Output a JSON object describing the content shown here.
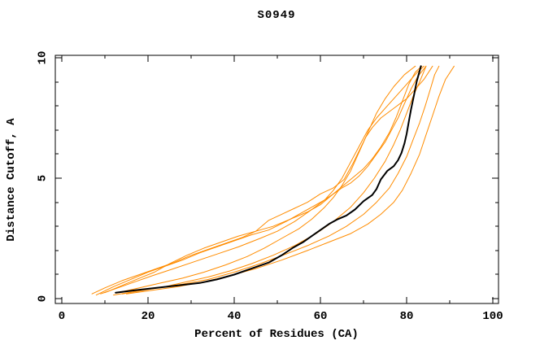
{
  "chart_data": {
    "type": "line",
    "title": "S0949",
    "xlabel": "Percent of Residues (CA)",
    "ylabel": "Distance Cutoff, A",
    "xlim": [
      -1.5,
      101.3
    ],
    "ylim": [
      -0.2,
      10.1
    ],
    "x_major_ticks": [
      0,
      20,
      40,
      60,
      80,
      100
    ],
    "x_minor_ticks": [
      10,
      30,
      50,
      70,
      90
    ],
    "y_major_ticks": [
      0,
      5,
      10
    ],
    "y_minor_ticks": [
      1,
      2,
      3,
      4,
      6,
      7,
      8,
      9
    ],
    "grid": false,
    "legend": "none",
    "colors": {
      "model_orange": "#ff8c00",
      "highlight_black": "#000000",
      "axis": "#000000"
    },
    "series": [
      {
        "name": "orange-1",
        "color": "#ff8c00",
        "width": 1,
        "points": [
          [
            7,
            0.2
          ],
          [
            10,
            0.45
          ],
          [
            14,
            0.75
          ],
          [
            18,
            1.0
          ],
          [
            22,
            1.25
          ],
          [
            26,
            1.5
          ],
          [
            30,
            1.8
          ],
          [
            34,
            2.05
          ],
          [
            38,
            2.3
          ],
          [
            42,
            2.55
          ],
          [
            45,
            2.8
          ],
          [
            48,
            3.25
          ],
          [
            51,
            3.5
          ],
          [
            54,
            3.75
          ],
          [
            57,
            4.0
          ],
          [
            60,
            4.35
          ],
          [
            63,
            4.6
          ],
          [
            65.5,
            4.95
          ],
          [
            67.5,
            5.6
          ],
          [
            69,
            6.15
          ],
          [
            70.5,
            6.7
          ],
          [
            72,
            7.1
          ],
          [
            74,
            7.5
          ],
          [
            77,
            7.9
          ],
          [
            80,
            8.3
          ],
          [
            82,
            8.7
          ],
          [
            84,
            9.1
          ],
          [
            86,
            9.65
          ]
        ]
      },
      {
        "name": "orange-2",
        "color": "#ff8c00",
        "width": 1,
        "points": [
          [
            8,
            0.15
          ],
          [
            12,
            0.5
          ],
          [
            16,
            0.8
          ],
          [
            20,
            1.1
          ],
          [
            24,
            1.35
          ],
          [
            28,
            1.6
          ],
          [
            32,
            1.9
          ],
          [
            36,
            2.15
          ],
          [
            40,
            2.4
          ],
          [
            44,
            2.65
          ],
          [
            48,
            2.85
          ],
          [
            52,
            3.2
          ],
          [
            55,
            3.5
          ],
          [
            58,
            3.8
          ],
          [
            61,
            4.1
          ],
          [
            63,
            4.35
          ],
          [
            65,
            4.6
          ],
          [
            67,
            4.8
          ],
          [
            69,
            5.1
          ],
          [
            71,
            5.5
          ],
          [
            73,
            6.0
          ],
          [
            75,
            6.5
          ],
          [
            76.5,
            7.0
          ],
          [
            78,
            7.5
          ],
          [
            79.5,
            8.1
          ],
          [
            81,
            8.7
          ],
          [
            82.5,
            9.2
          ],
          [
            84.5,
            9.65
          ]
        ]
      },
      {
        "name": "orange-3",
        "color": "#ff8c00",
        "width": 1,
        "points": [
          [
            10,
            0.25
          ],
          [
            14,
            0.55
          ],
          [
            18,
            0.85
          ],
          [
            21.5,
            1.1
          ],
          [
            25,
            1.45
          ],
          [
            29,
            1.8
          ],
          [
            33,
            2.1
          ],
          [
            37,
            2.35
          ],
          [
            41,
            2.6
          ],
          [
            45,
            2.8
          ],
          [
            49,
            3.0
          ],
          [
            53,
            3.3
          ],
          [
            57,
            3.6
          ],
          [
            60,
            3.9
          ],
          [
            62,
            4.2
          ],
          [
            64,
            4.5
          ],
          [
            66,
            4.8
          ],
          [
            68,
            5.1
          ],
          [
            70,
            5.4
          ],
          [
            72,
            5.8
          ],
          [
            74,
            6.3
          ],
          [
            76,
            6.9
          ],
          [
            77.5,
            7.5
          ],
          [
            79,
            8.2
          ],
          [
            80.5,
            8.9
          ],
          [
            82,
            9.4
          ],
          [
            83.5,
            9.65
          ]
        ]
      },
      {
        "name": "orange-4",
        "color": "#ff8c00",
        "width": 1,
        "points": [
          [
            9,
            0.2
          ],
          [
            13,
            0.45
          ],
          [
            17,
            0.7
          ],
          [
            21,
            0.95
          ],
          [
            26,
            1.25
          ],
          [
            31,
            1.55
          ],
          [
            36,
            1.85
          ],
          [
            41,
            2.15
          ],
          [
            46,
            2.5
          ],
          [
            50,
            2.8
          ],
          [
            54,
            3.2
          ],
          [
            58,
            3.7
          ],
          [
            61,
            4.1
          ],
          [
            63,
            4.5
          ],
          [
            65,
            5.0
          ],
          [
            66.5,
            5.5
          ],
          [
            68,
            6.0
          ],
          [
            69.5,
            6.5
          ],
          [
            71,
            7.0
          ],
          [
            73,
            7.5
          ],
          [
            75.5,
            8.0
          ],
          [
            78,
            8.5
          ],
          [
            80.5,
            9.0
          ],
          [
            82.5,
            9.4
          ],
          [
            84,
            9.65
          ]
        ]
      },
      {
        "name": "orange-5",
        "color": "#ff8c00",
        "width": 1,
        "points": [
          [
            13,
            0.25
          ],
          [
            18,
            0.45
          ],
          [
            23,
            0.65
          ],
          [
            28,
            0.85
          ],
          [
            33,
            1.1
          ],
          [
            38,
            1.4
          ],
          [
            43,
            1.75
          ],
          [
            47,
            2.1
          ],
          [
            51,
            2.5
          ],
          [
            55,
            2.9
          ],
          [
            58,
            3.3
          ],
          [
            61,
            3.8
          ],
          [
            63,
            4.2
          ],
          [
            65,
            4.7
          ],
          [
            67,
            5.3
          ],
          [
            68.5,
            5.9
          ],
          [
            70,
            6.5
          ],
          [
            71.5,
            7.1
          ],
          [
            73,
            7.7
          ],
          [
            75,
            8.3
          ],
          [
            77,
            8.8
          ],
          [
            79.5,
            9.3
          ],
          [
            82,
            9.65
          ]
        ]
      },
      {
        "name": "orange-6",
        "color": "#ff8c00",
        "width": 1,
        "points": [
          [
            14,
            0.2
          ],
          [
            19,
            0.35
          ],
          [
            24,
            0.5
          ],
          [
            29,
            0.7
          ],
          [
            34,
            0.9
          ],
          [
            39,
            1.15
          ],
          [
            44,
            1.45
          ],
          [
            49,
            1.8
          ],
          [
            54,
            2.2
          ],
          [
            59,
            2.7
          ],
          [
            63,
            3.2
          ],
          [
            67,
            3.8
          ],
          [
            70,
            4.4
          ],
          [
            72.5,
            5.0
          ],
          [
            75,
            5.7
          ],
          [
            77,
            6.4
          ],
          [
            78.5,
            7.0
          ],
          [
            80,
            7.7
          ],
          [
            81.5,
            8.4
          ],
          [
            83,
            9.0
          ],
          [
            84.5,
            9.65
          ]
        ]
      },
      {
        "name": "orange-7",
        "color": "#ff8c00",
        "width": 1,
        "points": [
          [
            12,
            0.15
          ],
          [
            17,
            0.3
          ],
          [
            22,
            0.45
          ],
          [
            28,
            0.6
          ],
          [
            34,
            0.8
          ],
          [
            40,
            1.1
          ],
          [
            46,
            1.45
          ],
          [
            52,
            1.85
          ],
          [
            57,
            2.2
          ],
          [
            62,
            2.6
          ],
          [
            66,
            3.0
          ],
          [
            70,
            3.5
          ],
          [
            73,
            4.0
          ],
          [
            76,
            4.6
          ],
          [
            78,
            5.2
          ],
          [
            80,
            5.9
          ],
          [
            81.5,
            6.6
          ],
          [
            83,
            7.3
          ],
          [
            84.3,
            8.0
          ],
          [
            85.5,
            8.7
          ],
          [
            86.5,
            9.3
          ],
          [
            87.5,
            9.65
          ]
        ]
      },
      {
        "name": "orange-8",
        "color": "#ff8c00",
        "width": 1,
        "points": [
          [
            15,
            0.2
          ],
          [
            21,
            0.35
          ],
          [
            27,
            0.5
          ],
          [
            33,
            0.7
          ],
          [
            39,
            0.95
          ],
          [
            45,
            1.25
          ],
          [
            51,
            1.6
          ],
          [
            57,
            2.0
          ],
          [
            62,
            2.35
          ],
          [
            67,
            2.7
          ],
          [
            71,
            3.1
          ],
          [
            74,
            3.5
          ],
          [
            77,
            4.0
          ],
          [
            79,
            4.5
          ],
          [
            81,
            5.2
          ],
          [
            83,
            6.0
          ],
          [
            84.5,
            6.8
          ],
          [
            86,
            7.6
          ],
          [
            87.5,
            8.4
          ],
          [
            89,
            9.1
          ],
          [
            91,
            9.65
          ]
        ]
      },
      {
        "name": "black",
        "color": "#000000",
        "width": 2,
        "points": [
          [
            12.5,
            0.25
          ],
          [
            17,
            0.35
          ],
          [
            22,
            0.45
          ],
          [
            27,
            0.55
          ],
          [
            32,
            0.65
          ],
          [
            36,
            0.8
          ],
          [
            40,
            1.0
          ],
          [
            44,
            1.25
          ],
          [
            48,
            1.5
          ],
          [
            51,
            1.8
          ],
          [
            53.5,
            2.1
          ],
          [
            56,
            2.35
          ],
          [
            58,
            2.6
          ],
          [
            60,
            2.85
          ],
          [
            62,
            3.1
          ],
          [
            64,
            3.3
          ],
          [
            66,
            3.45
          ],
          [
            68,
            3.7
          ],
          [
            70,
            4.05
          ],
          [
            72,
            4.3
          ],
          [
            73,
            4.55
          ],
          [
            74,
            4.95
          ],
          [
            75.5,
            5.3
          ],
          [
            77,
            5.5
          ],
          [
            78,
            5.75
          ],
          [
            78.8,
            6.05
          ],
          [
            79.5,
            6.45
          ],
          [
            80,
            6.85
          ],
          [
            80.5,
            7.35
          ],
          [
            81,
            7.85
          ],
          [
            81.7,
            8.45
          ],
          [
            82.3,
            9.0
          ],
          [
            83.3,
            9.65
          ]
        ]
      }
    ]
  }
}
